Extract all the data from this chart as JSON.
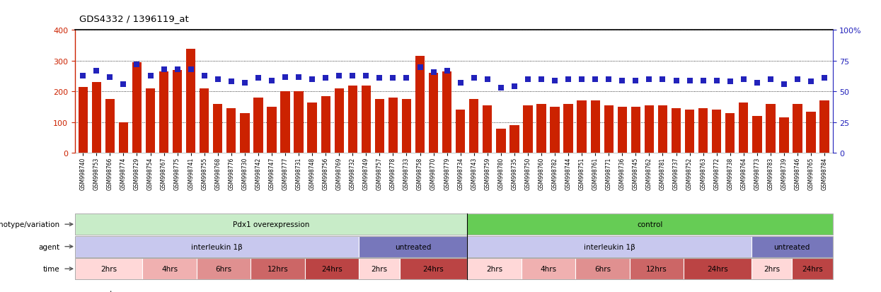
{
  "title": "GDS4332 / 1396119_at",
  "samples": [
    "GSM998740",
    "GSM998753",
    "GSM998766",
    "GSM998774",
    "GSM998729",
    "GSM998754",
    "GSM998767",
    "GSM998775",
    "GSM998741",
    "GSM998755",
    "GSM998768",
    "GSM998776",
    "GSM998730",
    "GSM998742",
    "GSM998747",
    "GSM998777",
    "GSM998731",
    "GSM998748",
    "GSM998756",
    "GSM998769",
    "GSM998732",
    "GSM998749",
    "GSM998757",
    "GSM998778",
    "GSM998733",
    "GSM998758",
    "GSM998770",
    "GSM998779",
    "GSM998734",
    "GSM998743",
    "GSM998759",
    "GSM998780",
    "GSM998735",
    "GSM998750",
    "GSM998760",
    "GSM998782",
    "GSM998744",
    "GSM998751",
    "GSM998761",
    "GSM998771",
    "GSM998736",
    "GSM998745",
    "GSM998762",
    "GSM998781",
    "GSM998737",
    "GSM998752",
    "GSM998763",
    "GSM998772",
    "GSM998738",
    "GSM998764",
    "GSM998773",
    "GSM998783",
    "GSM998739",
    "GSM998746",
    "GSM998765",
    "GSM998784"
  ],
  "counts": [
    215,
    230,
    175,
    100,
    295,
    210,
    265,
    270,
    340,
    210,
    160,
    145,
    130,
    180,
    150,
    200,
    200,
    165,
    185,
    210,
    220,
    220,
    175,
    180,
    175,
    315,
    260,
    265,
    140,
    175,
    155,
    80,
    90,
    155,
    160,
    150,
    160,
    170,
    170,
    155,
    150,
    150,
    155,
    155,
    145,
    140,
    145,
    140,
    130,
    165,
    120,
    160,
    115,
    160,
    135,
    170
  ],
  "percentiles": [
    63,
    67,
    62,
    56,
    72,
    63,
    68,
    68,
    68,
    63,
    60,
    58,
    57,
    61,
    59,
    62,
    62,
    60,
    61,
    63,
    63,
    63,
    61,
    61,
    61,
    70,
    66,
    67,
    57,
    61,
    60,
    53,
    54,
    60,
    60,
    59,
    60,
    60,
    60,
    60,
    59,
    59,
    60,
    60,
    59,
    59,
    59,
    59,
    58,
    60,
    57,
    60,
    56,
    60,
    58,
    61
  ],
  "left_ylim": [
    0,
    400
  ],
  "right_ylim": [
    0,
    100
  ],
  "left_yticks": [
    0,
    100,
    200,
    300,
    400
  ],
  "right_yticks": [
    0,
    25,
    50,
    75,
    100
  ],
  "right_yticklabels": [
    "0",
    "25",
    "50",
    "75",
    "100%"
  ],
  "bar_color": "#cc2200",
  "marker_color": "#2222bb",
  "genotype_groups": [
    {
      "label": "Pdx1 overexpression",
      "start": 0,
      "end": 29,
      "color": "#c8ecc8"
    },
    {
      "label": "control",
      "start": 29,
      "end": 56,
      "color": "#66cc55"
    }
  ],
  "agent_groups": [
    {
      "label": "interleukin 1β",
      "start": 0,
      "end": 21,
      "color": "#c8c8ee"
    },
    {
      "label": "untreated",
      "start": 21,
      "end": 29,
      "color": "#7777bb"
    },
    {
      "label": "interleukin 1β",
      "start": 29,
      "end": 50,
      "color": "#c8c8ee"
    },
    {
      "label": "untreated",
      "start": 50,
      "end": 56,
      "color": "#7777bb"
    }
  ],
  "time_groups": [
    {
      "label": "2hrs",
      "start": 0,
      "end": 5,
      "color": "#ffd8d8"
    },
    {
      "label": "4hrs",
      "start": 5,
      "end": 9,
      "color": "#f0b0b0"
    },
    {
      "label": "6hrs",
      "start": 9,
      "end": 13,
      "color": "#e09090"
    },
    {
      "label": "12hrs",
      "start": 13,
      "end": 17,
      "color": "#cc6666"
    },
    {
      "label": "24hrs",
      "start": 17,
      "end": 21,
      "color": "#bb4444"
    },
    {
      "label": "2hrs",
      "start": 21,
      "end": 24,
      "color": "#ffd8d8"
    },
    {
      "label": "24hrs",
      "start": 24,
      "end": 29,
      "color": "#bb4444"
    },
    {
      "label": "2hrs",
      "start": 29,
      "end": 33,
      "color": "#ffd8d8"
    },
    {
      "label": "4hrs",
      "start": 33,
      "end": 37,
      "color": "#f0b0b0"
    },
    {
      "label": "6hrs",
      "start": 37,
      "end": 41,
      "color": "#e09090"
    },
    {
      "label": "12hrs",
      "start": 41,
      "end": 45,
      "color": "#cc6666"
    },
    {
      "label": "24hrs",
      "start": 45,
      "end": 50,
      "color": "#bb4444"
    },
    {
      "label": "2hrs",
      "start": 50,
      "end": 53,
      "color": "#ffd8d8"
    },
    {
      "label": "24hrs",
      "start": 53,
      "end": 56,
      "color": "#bb4444"
    }
  ],
  "row_label_names": [
    "genotype/variation",
    "agent",
    "time"
  ]
}
